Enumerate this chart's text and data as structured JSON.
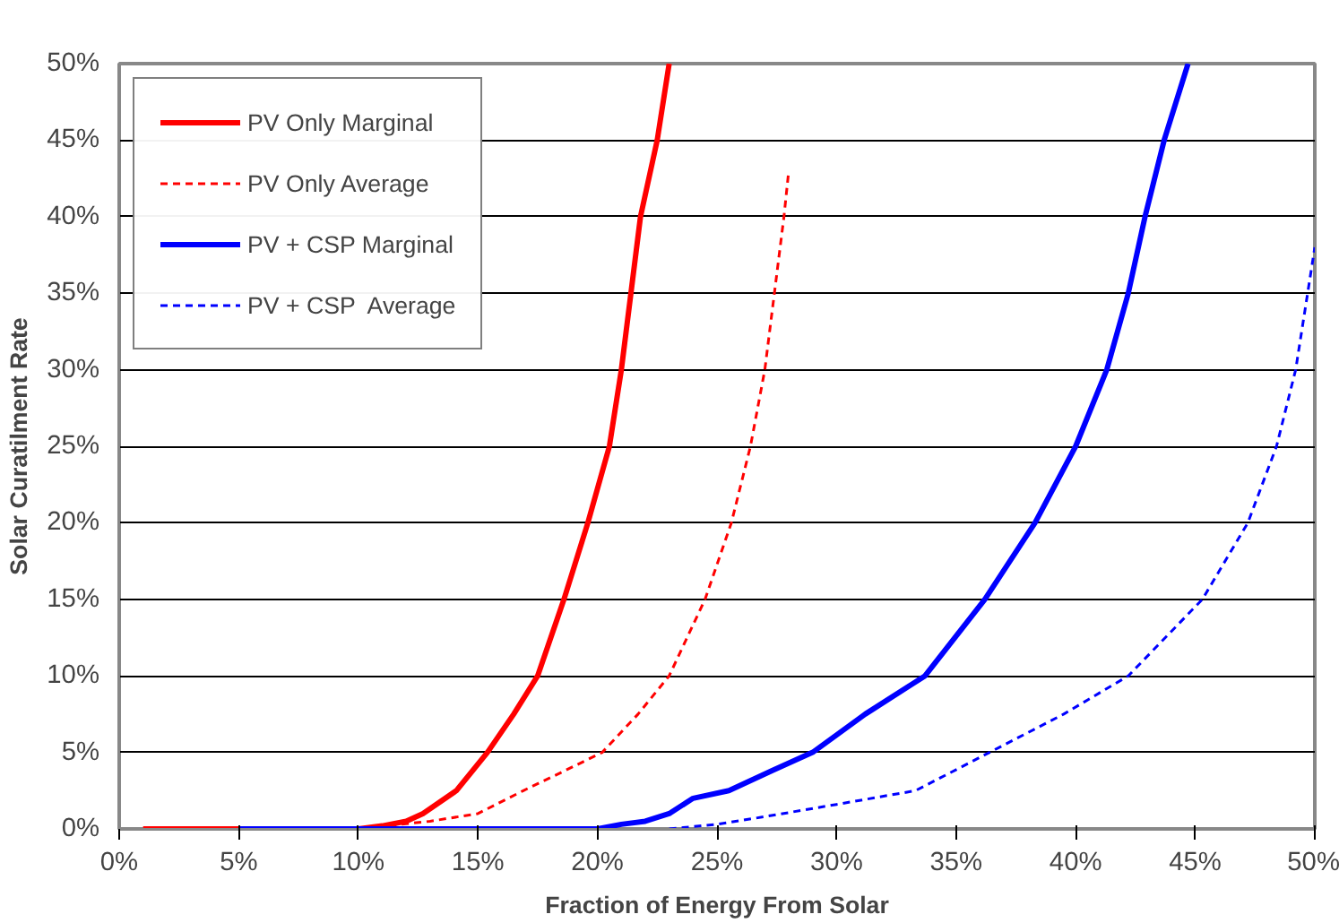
{
  "chart_data": {
    "type": "line",
    "xlabel": "Fraction of Energy From Solar",
    "ylabel": "Solar Curatilment Rate",
    "xlim": [
      0,
      50
    ],
    "ylim": [
      0,
      50
    ],
    "xticks": [
      {
        "value": 0,
        "label": "0%"
      },
      {
        "value": 5,
        "label": "5%"
      },
      {
        "value": 10,
        "label": "10%"
      },
      {
        "value": 15,
        "label": "15%"
      },
      {
        "value": 20,
        "label": "20%"
      },
      {
        "value": 25,
        "label": "25%"
      },
      {
        "value": 30,
        "label": "30%"
      },
      {
        "value": 35,
        "label": "35%"
      },
      {
        "value": 40,
        "label": "40%"
      },
      {
        "value": 45,
        "label": "45%"
      },
      {
        "value": 50,
        "label": "50%"
      }
    ],
    "yticks": [
      {
        "value": 0,
        "label": "0%"
      },
      {
        "value": 5,
        "label": "5%"
      },
      {
        "value": 10,
        "label": "10%"
      },
      {
        "value": 15,
        "label": "15%"
      },
      {
        "value": 20,
        "label": "20%"
      },
      {
        "value": 25,
        "label": "25%"
      },
      {
        "value": 30,
        "label": "30%"
      },
      {
        "value": 35,
        "label": "35%"
      },
      {
        "value": 40,
        "label": "40%"
      },
      {
        "value": 45,
        "label": "45%"
      },
      {
        "value": 50,
        "label": "50%"
      }
    ],
    "grid": "y",
    "legend": "top left",
    "marker": "none",
    "series": [
      {
        "name": "PV Only Marginal",
        "color": "#ff0000",
        "line_style": "solid",
        "x": [
          1,
          5,
          10,
          11,
          12,
          12.7,
          14.1,
          15.4,
          16.5,
          17.5,
          18.6,
          19.6,
          20.5,
          21,
          21.8,
          22.5,
          23
        ],
        "values": [
          0,
          0,
          0,
          0.2,
          0.5,
          1,
          2.5,
          5,
          7.5,
          10,
          15,
          20,
          25,
          30,
          40,
          45,
          50
        ]
      },
      {
        "name": "PV Only Average",
        "color": "#ff0000",
        "line_style": "dashed",
        "x": [
          5,
          10,
          13,
          15,
          16.9,
          18.5,
          20.2,
          21.7,
          23,
          24.5,
          25.6,
          26.4,
          27,
          27.4,
          27.8,
          28
        ],
        "values": [
          0,
          0,
          0.5,
          1,
          2.5,
          3.7,
          5,
          7.5,
          10,
          15,
          20,
          25,
          30,
          35,
          40,
          43
        ]
      },
      {
        "name": "PV + CSP Marginal",
        "color": "#0000ff",
        "line_style": "solid",
        "x": [
          5,
          10,
          15,
          20,
          21,
          22,
          23,
          24,
          25.5,
          27.3,
          29,
          31.2,
          33.7,
          36.2,
          38.3,
          40,
          41.3,
          42.2,
          42.9,
          43.7,
          44.7
        ],
        "values": [
          0,
          0,
          0,
          0,
          0.3,
          0.5,
          1,
          2,
          2.5,
          3.8,
          5,
          7.5,
          10,
          15,
          20,
          25,
          30,
          35,
          40,
          45,
          50
        ]
      },
      {
        "name": "PV + CSP  Average",
        "color": "#0000ff",
        "line_style": "dashed",
        "x": [
          23,
          25,
          27,
          30,
          33.3,
          36.4,
          39.5,
          42.2,
          45.3,
          47.2,
          48.4,
          49.2,
          49.7,
          50
        ],
        "values": [
          0,
          0.3,
          0.8,
          1.6,
          2.5,
          5,
          7.5,
          10,
          15,
          20,
          25,
          30,
          35,
          38
        ]
      }
    ]
  }
}
